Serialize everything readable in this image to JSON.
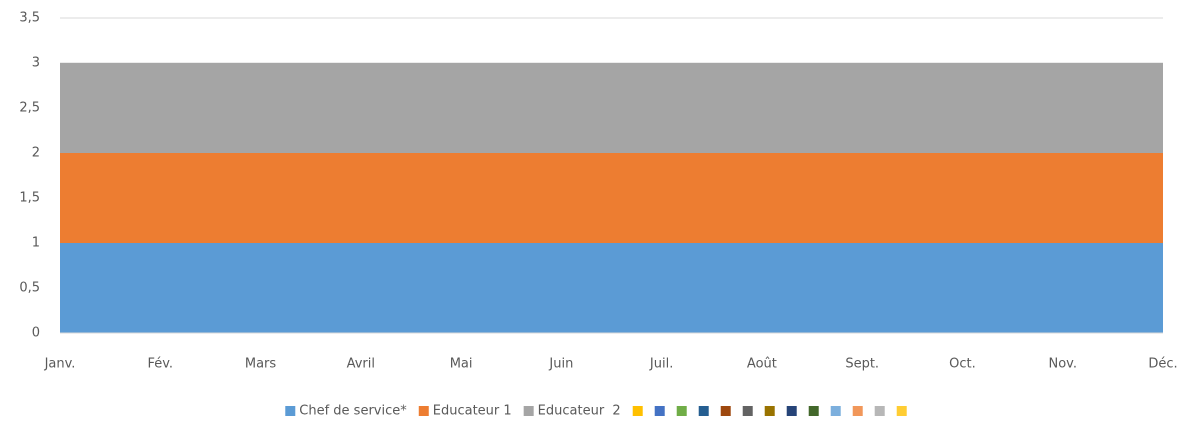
{
  "chart_data": {
    "type": "stacked_area",
    "categories": [
      "Janv.",
      "Fév.",
      "Mars",
      "Avril",
      "Mai",
      "Juin",
      "Juil.",
      "Août",
      "Sept.",
      "Oct.",
      "Nov.",
      "Déc."
    ],
    "series": [
      {
        "name": "Chef de service*",
        "color": "#5b9bd5",
        "values": [
          1,
          1,
          1,
          1,
          1,
          1,
          1,
          1,
          1,
          1,
          1,
          1
        ]
      },
      {
        "name": "Educateur 1",
        "color": "#ed7d31",
        "values": [
          1,
          1,
          1,
          1,
          1,
          1,
          1,
          1,
          1,
          1,
          1,
          1
        ]
      },
      {
        "name": "Educateur  2",
        "color": "#a5a5a5",
        "values": [
          1,
          1,
          1,
          1,
          1,
          1,
          1,
          1,
          1,
          1,
          1,
          1
        ]
      }
    ],
    "extra_legend_colors": [
      "#ffc000",
      "#4472c4",
      "#70ad47",
      "#255e91",
      "#9e480e",
      "#636363",
      "#997300",
      "#264478",
      "#43682b",
      "#7cafdd",
      "#f1975a",
      "#b7b7b7",
      "#ffcd33"
    ],
    "ylim": [
      0,
      3.5
    ],
    "yticks": [
      0,
      {
        "value": 0.5,
        "label": "0,5"
      },
      1,
      {
        "value": 1.5,
        "label": "1,5"
      },
      2,
      {
        "value": 2.5,
        "label": "2,5"
      },
      3,
      {
        "value": 3.5,
        "label": "3,5"
      }
    ],
    "grid": true
  }
}
